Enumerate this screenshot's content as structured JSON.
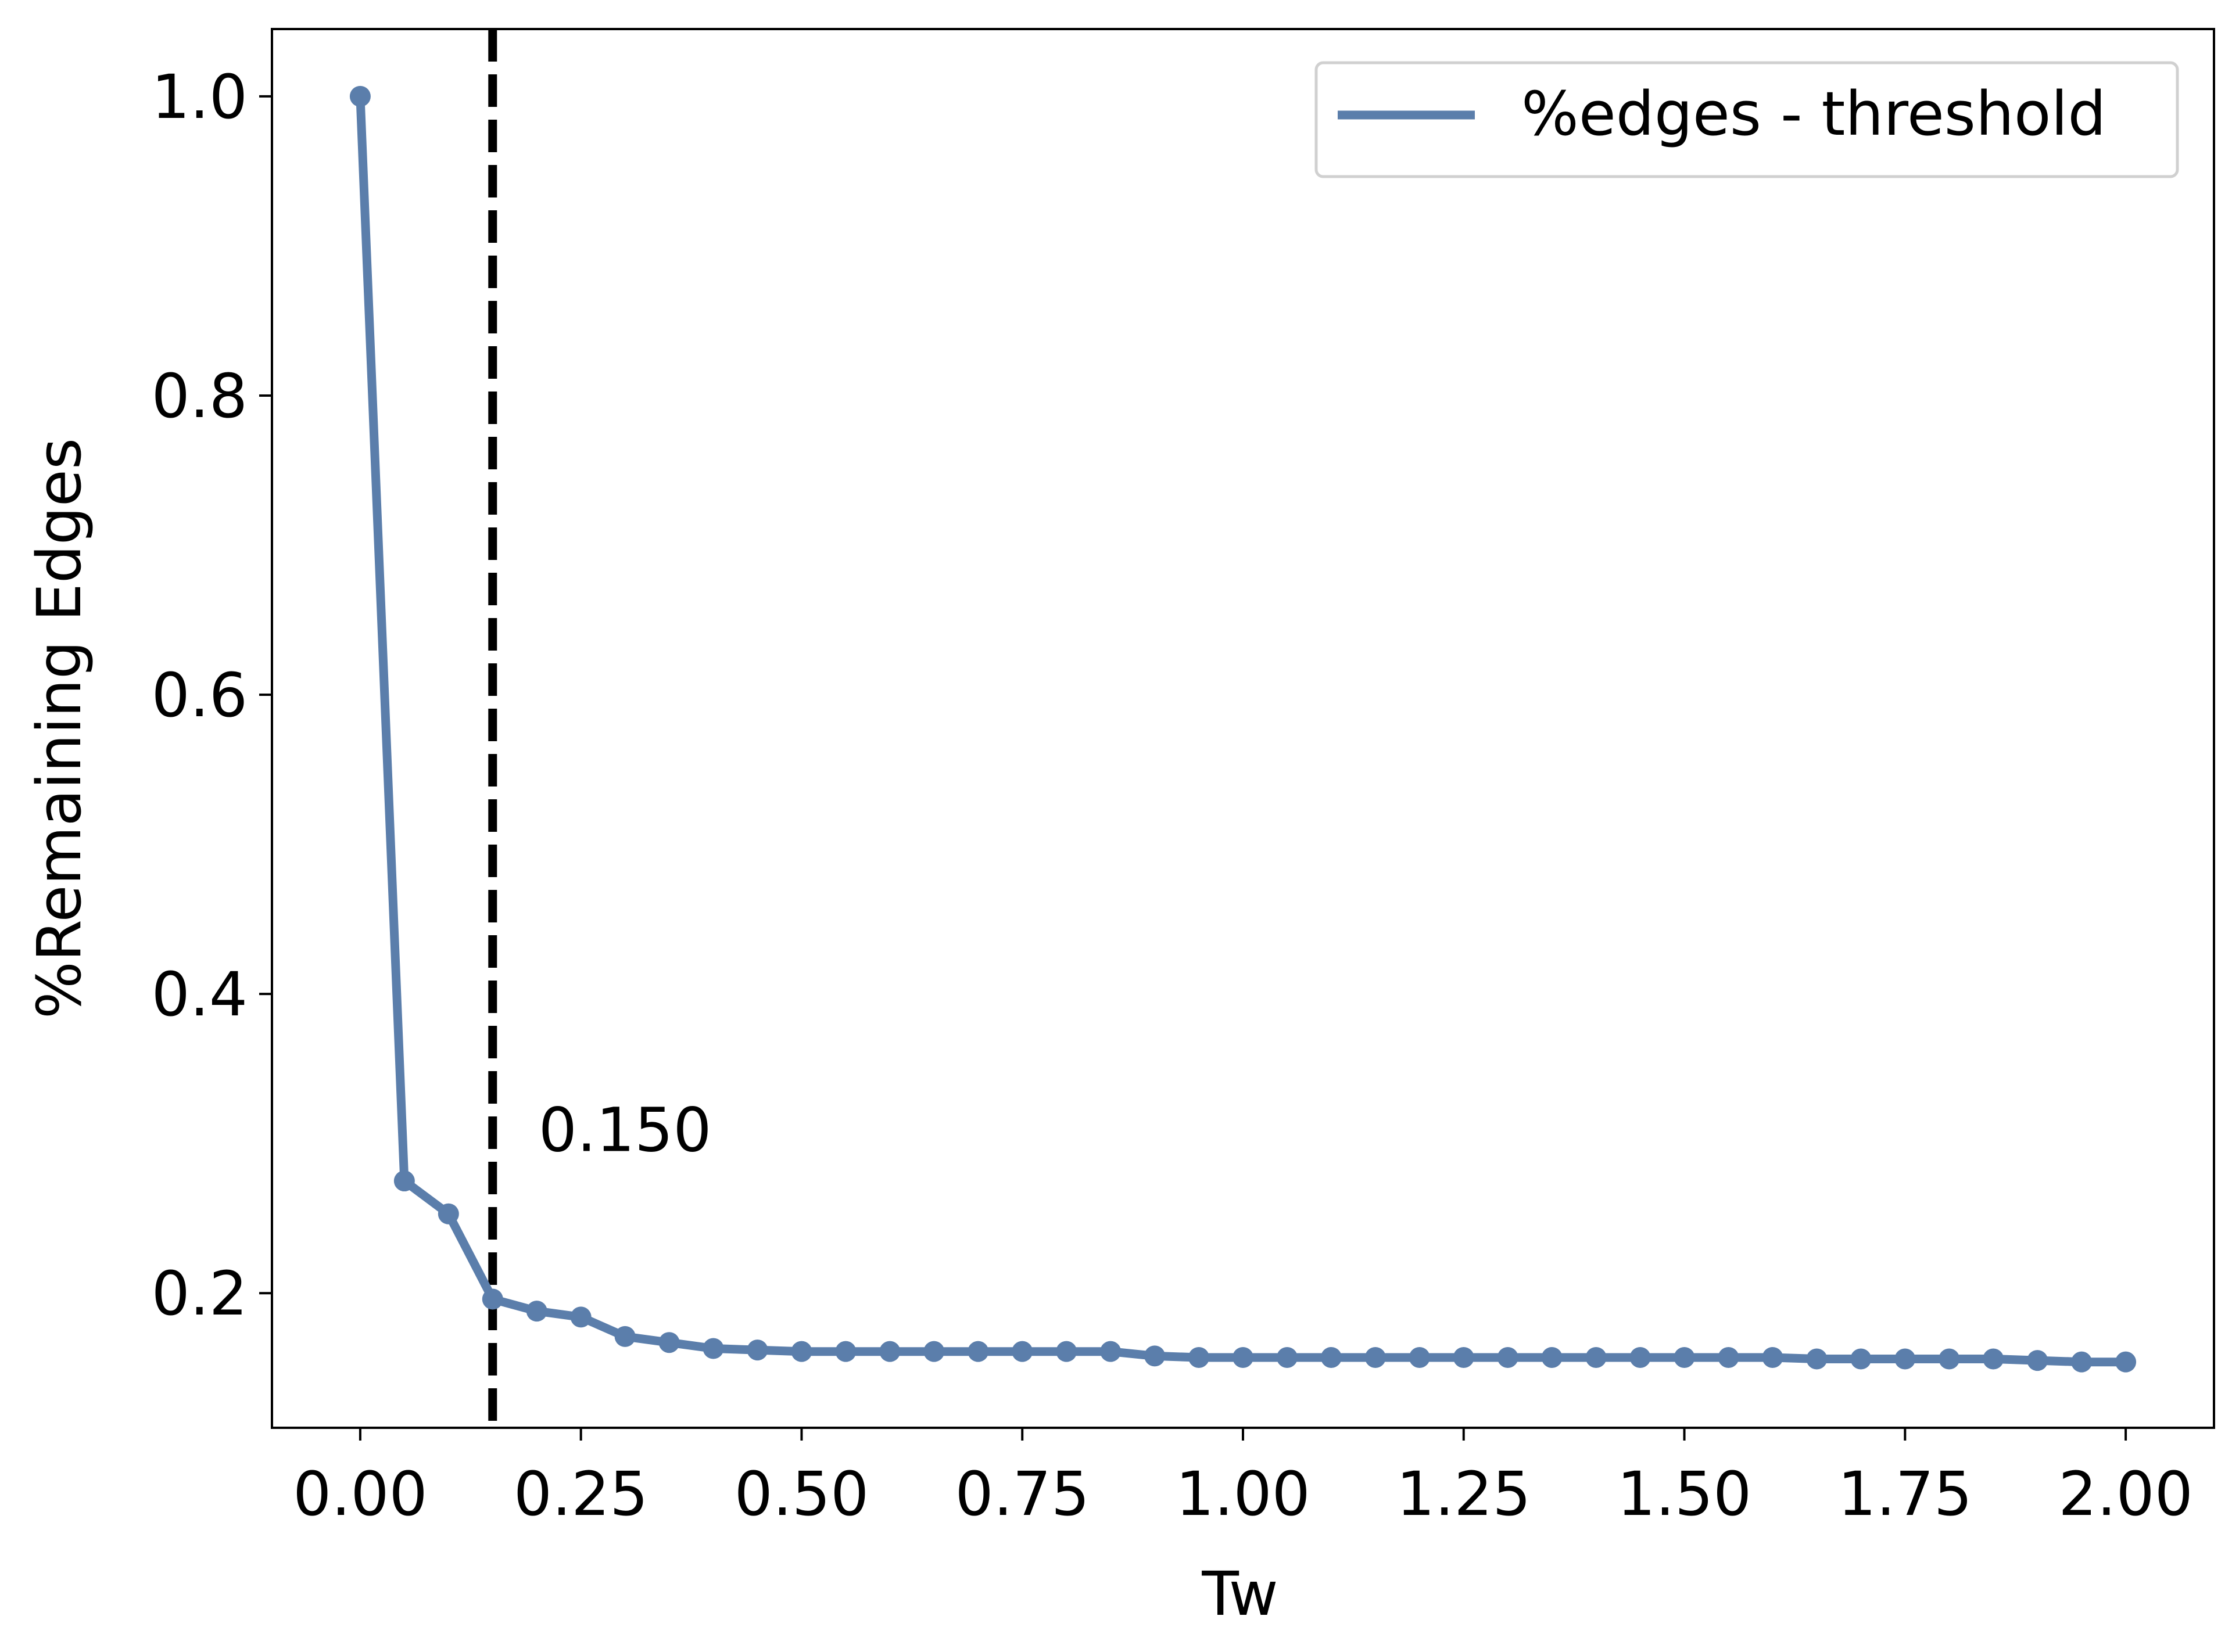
{
  "chart_data": {
    "type": "line",
    "title": "",
    "xlabel": "Tw",
    "ylabel": "%Remaining Edges",
    "xlim": [
      -0.1,
      2.1
    ],
    "ylim": [
      0.11,
      1.045
    ],
    "xticks": [
      0.0,
      0.25,
      0.5,
      0.75,
      1.0,
      1.25,
      1.5,
      1.75,
      2.0
    ],
    "xtick_labels": [
      "0.00",
      "0.25",
      "0.50",
      "0.75",
      "1.00",
      "1.25",
      "1.50",
      "1.75",
      "2.00"
    ],
    "yticks": [
      0.2,
      0.4,
      0.6,
      0.8,
      1.0
    ],
    "ytick_labels": [
      "0.2",
      "0.4",
      "0.6",
      "0.8",
      "1.0"
    ],
    "grid": false,
    "legend_position": "top-right",
    "series": [
      {
        "name": "%edges - threshold",
        "color": "#5b7eab",
        "marker": "circle",
        "x": [
          0.0,
          0.05,
          0.1,
          0.15,
          0.2,
          0.25,
          0.3,
          0.35,
          0.4,
          0.45,
          0.5,
          0.55,
          0.6,
          0.65,
          0.7,
          0.75,
          0.8,
          0.85,
          0.9,
          0.95,
          1.0,
          1.05,
          1.1,
          1.15,
          1.2,
          1.25,
          1.3,
          1.35,
          1.4,
          1.45,
          1.5,
          1.55,
          1.6,
          1.65,
          1.7,
          1.75,
          1.8,
          1.85,
          1.9,
          1.95,
          2.0
        ],
        "y": [
          1.0,
          0.275,
          0.253,
          0.196,
          0.188,
          0.184,
          0.171,
          0.167,
          0.163,
          0.162,
          0.161,
          0.161,
          0.161,
          0.161,
          0.161,
          0.161,
          0.161,
          0.161,
          0.158,
          0.157,
          0.157,
          0.157,
          0.157,
          0.157,
          0.157,
          0.157,
          0.157,
          0.157,
          0.157,
          0.157,
          0.157,
          0.157,
          0.157,
          0.156,
          0.156,
          0.156,
          0.156,
          0.156,
          0.155,
          0.154,
          0.154
        ]
      }
    ],
    "vline": {
      "x": 0.15,
      "color": "#000000",
      "style": "dashed",
      "label": "0.150"
    }
  }
}
